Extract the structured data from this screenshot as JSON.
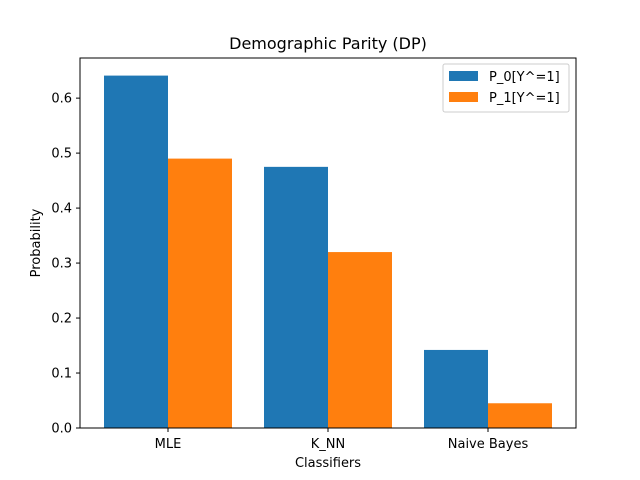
{
  "chart_data": {
    "type": "bar",
    "title": "Demographic Parity (DP)",
    "xlabel": "Classifiers",
    "ylabel": "Probability",
    "categories": [
      "MLE",
      "K_NN",
      "Naive Bayes"
    ],
    "series": [
      {
        "name": "P_0[Y^=1]",
        "values": [
          0.641,
          0.475,
          0.142
        ],
        "color": "#1f77b4"
      },
      {
        "name": "P_1[Y^=1]",
        "values": [
          0.49,
          0.32,
          0.045
        ],
        "color": "#ff7f0e"
      }
    ],
    "ylim": [
      0,
      0.673
    ],
    "yticks": [
      0.0,
      0.1,
      0.2,
      0.3,
      0.4,
      0.5,
      0.6
    ],
    "ytick_labels": [
      "0.0",
      "0.1",
      "0.2",
      "0.3",
      "0.4",
      "0.5",
      "0.6"
    ],
    "grid": false,
    "legend_position": "top-right"
  }
}
